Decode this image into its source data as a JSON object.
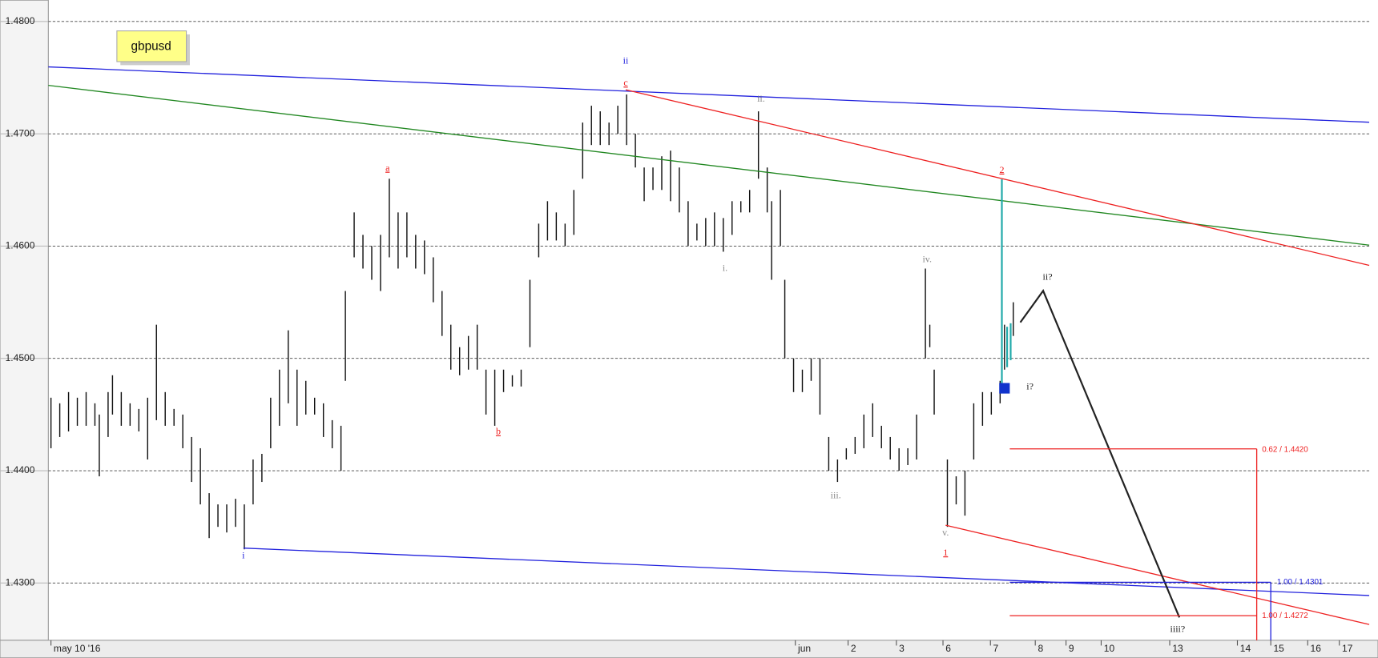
{
  "chart_data": {
    "type": "range-bar",
    "title": "gbpusd",
    "ylim": [
      1.4249,
      1.4819
    ],
    "yticks": [
      {
        "value": 1.48,
        "label": "1.4800"
      },
      {
        "value": 1.47,
        "label": "1.4700"
      },
      {
        "value": 1.46,
        "label": "1.4600"
      },
      {
        "value": 1.45,
        "label": "1.4500"
      },
      {
        "value": 1.44,
        "label": "1.4400"
      },
      {
        "value": 1.43,
        "label": "1.4300"
      }
    ],
    "grid": true,
    "xlim": [
      0,
      1503
    ],
    "xticks": [
      {
        "value": 3,
        "label": "may 10 '16"
      },
      {
        "value": 850,
        "label": "jun"
      },
      {
        "value": 910,
        "label": "2"
      },
      {
        "value": 965,
        "label": "3"
      },
      {
        "value": 1018,
        "label": "6"
      },
      {
        "value": 1072,
        "label": "7"
      },
      {
        "value": 1123,
        "label": "8"
      },
      {
        "value": 1158,
        "label": "9"
      },
      {
        "value": 1198,
        "label": "10"
      },
      {
        "value": 1276,
        "label": "13"
      },
      {
        "value": 1353,
        "label": "14"
      },
      {
        "value": 1391,
        "label": "15"
      },
      {
        "value": 1433,
        "label": "16"
      },
      {
        "value": 1469,
        "label": "17"
      }
    ],
    "color": "#111111",
    "x": [
      3,
      13,
      23,
      33,
      43,
      53,
      58,
      68,
      73,
      83,
      93,
      103,
      113,
      123,
      133,
      143,
      153,
      163,
      173,
      183,
      193,
      203,
      213,
      223,
      233,
      243,
      253,
      263,
      273,
      283,
      293,
      303,
      313,
      323,
      333,
      338,
      348,
      358,
      368,
      378,
      388,
      398,
      408,
      418,
      428,
      438,
      448,
      458,
      468,
      478,
      488,
      498,
      508,
      518,
      528,
      538,
      548,
      558,
      568,
      578,
      588,
      598,
      608,
      618,
      628,
      638,
      648,
      658,
      668,
      678,
      688,
      698,
      708,
      718,
      728,
      738,
      748,
      758,
      768,
      778,
      788,
      798,
      808,
      818,
      823,
      833,
      838,
      848,
      858,
      868,
      878,
      888,
      898,
      908,
      918,
      928,
      938,
      948,
      958,
      968,
      978,
      988,
      998,
      1003,
      1008,
      1023,
      1033,
      1043,
      1053,
      1063,
      1073,
      1083,
      1088,
      1098
    ],
    "high": [
      1.4465,
      1.446,
      1.447,
      1.4465,
      1.447,
      1.446,
      1.445,
      1.447,
      1.4485,
      1.447,
      1.446,
      1.4455,
      1.4465,
      1.453,
      1.447,
      1.4455,
      1.445,
      1.443,
      1.442,
      1.438,
      1.437,
      1.437,
      1.4375,
      1.437,
      1.441,
      1.4415,
      1.4465,
      1.449,
      1.4525,
      1.449,
      1.448,
      1.4465,
      1.446,
      1.4445,
      1.444,
      1.456,
      1.463,
      1.461,
      1.46,
      1.461,
      1.466,
      1.463,
      1.463,
      1.461,
      1.4605,
      1.459,
      1.456,
      1.453,
      1.451,
      1.452,
      1.453,
      1.449,
      1.449,
      1.449,
      1.4485,
      1.449,
      1.457,
      1.462,
      1.464,
      1.463,
      1.462,
      1.465,
      1.471,
      1.4725,
      1.472,
      1.471,
      1.4725,
      1.4735,
      1.47,
      1.467,
      1.467,
      1.468,
      1.4685,
      1.467,
      1.464,
      1.462,
      1.4625,
      1.463,
      1.4625,
      1.464,
      1.464,
      1.465,
      1.472,
      1.467,
      1.464,
      1.465,
      1.457,
      1.45,
      1.449,
      1.45,
      1.45,
      1.443,
      1.441,
      1.442,
      1.443,
      1.445,
      1.446,
      1.444,
      1.443,
      1.442,
      1.442,
      1.445,
      1.458,
      1.453,
      1.449,
      1.441,
      1.4395,
      1.44,
      1.446,
      1.447,
      1.447,
      1.448,
      1.453,
      1.455
    ],
    "low": [
      1.442,
      1.443,
      1.4435,
      1.444,
      1.444,
      1.444,
      1.4395,
      1.443,
      1.445,
      1.444,
      1.444,
      1.4435,
      1.441,
      1.4445,
      1.444,
      1.444,
      1.442,
      1.439,
      1.437,
      1.434,
      1.435,
      1.4345,
      1.435,
      1.433,
      1.437,
      1.439,
      1.442,
      1.444,
      1.446,
      1.444,
      1.445,
      1.445,
      1.443,
      1.442,
      1.44,
      1.448,
      1.459,
      1.458,
      1.457,
      1.456,
      1.459,
      1.458,
      1.459,
      1.458,
      1.4575,
      1.455,
      1.452,
      1.449,
      1.4485,
      1.449,
      1.449,
      1.445,
      1.444,
      1.447,
      1.4475,
      1.4475,
      1.451,
      1.459,
      1.4605,
      1.4605,
      1.46,
      1.461,
      1.466,
      1.469,
      1.469,
      1.469,
      1.47,
      1.469,
      1.467,
      1.464,
      1.465,
      1.465,
      1.464,
      1.463,
      1.46,
      1.4605,
      1.46,
      1.46,
      1.4595,
      1.461,
      1.463,
      1.463,
      1.466,
      1.463,
      1.457,
      1.46,
      1.45,
      1.447,
      1.447,
      1.448,
      1.445,
      1.44,
      1.439,
      1.441,
      1.4415,
      1.442,
      1.443,
      1.442,
      1.441,
      1.44,
      1.4405,
      1.441,
      1.45,
      1.451,
      1.445,
      1.435,
      1.437,
      1.436,
      1.441,
      1.444,
      1.445,
      1.446,
      1.449,
      1.452
    ],
    "annotations": [
      "ii",
      "c",
      "a",
      "b",
      "ii.",
      "i.",
      "iii.",
      "iv.",
      "v.",
      "1",
      "2",
      "ii?",
      "i?",
      "i",
      "iiii?"
    ],
    "fib_labels": [
      "0.62 / 1.4420",
      "1.00 / 1.4301",
      "1.00 / 1.4272"
    ]
  }
}
